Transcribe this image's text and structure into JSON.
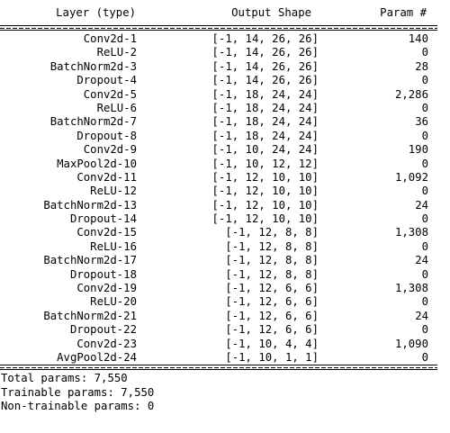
{
  "header": {
    "layer": "Layer (type)",
    "shape": "Output Shape",
    "param": "Param #"
  },
  "rows": [
    {
      "layer": "Conv2d-1",
      "shape": "[-1, 14, 26, 26]",
      "param": "140"
    },
    {
      "layer": "ReLU-2",
      "shape": "[-1, 14, 26, 26]",
      "param": "0"
    },
    {
      "layer": "BatchNorm2d-3",
      "shape": "[-1, 14, 26, 26]",
      "param": "28"
    },
    {
      "layer": "Dropout-4",
      "shape": "[-1, 14, 26, 26]",
      "param": "0"
    },
    {
      "layer": "Conv2d-5",
      "shape": "[-1, 18, 24, 24]",
      "param": "2,286"
    },
    {
      "layer": "ReLU-6",
      "shape": "[-1, 18, 24, 24]",
      "param": "0"
    },
    {
      "layer": "BatchNorm2d-7",
      "shape": "[-1, 18, 24, 24]",
      "param": "36"
    },
    {
      "layer": "Dropout-8",
      "shape": "[-1, 18, 24, 24]",
      "param": "0"
    },
    {
      "layer": "Conv2d-9",
      "shape": "[-1, 10, 24, 24]",
      "param": "190"
    },
    {
      "layer": "MaxPool2d-10",
      "shape": "[-1, 10, 12, 12]",
      "param": "0"
    },
    {
      "layer": "Conv2d-11",
      "shape": "[-1, 12, 10, 10]",
      "param": "1,092"
    },
    {
      "layer": "ReLU-12",
      "shape": "[-1, 12, 10, 10]",
      "param": "0"
    },
    {
      "layer": "BatchNorm2d-13",
      "shape": "[-1, 12, 10, 10]",
      "param": "24"
    },
    {
      "layer": "Dropout-14",
      "shape": "[-1, 12, 10, 10]",
      "param": "0"
    },
    {
      "layer": "Conv2d-15",
      "shape": "[-1, 12, 8, 8]",
      "param": "1,308"
    },
    {
      "layer": "ReLU-16",
      "shape": "[-1, 12, 8, 8]",
      "param": "0"
    },
    {
      "layer": "BatchNorm2d-17",
      "shape": "[-1, 12, 8, 8]",
      "param": "24"
    },
    {
      "layer": "Dropout-18",
      "shape": "[-1, 12, 8, 8]",
      "param": "0"
    },
    {
      "layer": "Conv2d-19",
      "shape": "[-1, 12, 6, 6]",
      "param": "1,308"
    },
    {
      "layer": "ReLU-20",
      "shape": "[-1, 12, 6, 6]",
      "param": "0"
    },
    {
      "layer": "BatchNorm2d-21",
      "shape": "[-1, 12, 6, 6]",
      "param": "24"
    },
    {
      "layer": "Dropout-22",
      "shape": "[-1, 12, 6, 6]",
      "param": "0"
    },
    {
      "layer": "Conv2d-23",
      "shape": "[-1, 10, 4, 4]",
      "param": "1,090"
    },
    {
      "layer": "AvgPool2d-24",
      "shape": "[-1, 10, 1, 1]",
      "param": "0"
    }
  ],
  "totals": {
    "total": "Total params: 7,550",
    "trainable": "Trainable params: 7,550",
    "non_trainable": "Non-trainable params: 0"
  }
}
